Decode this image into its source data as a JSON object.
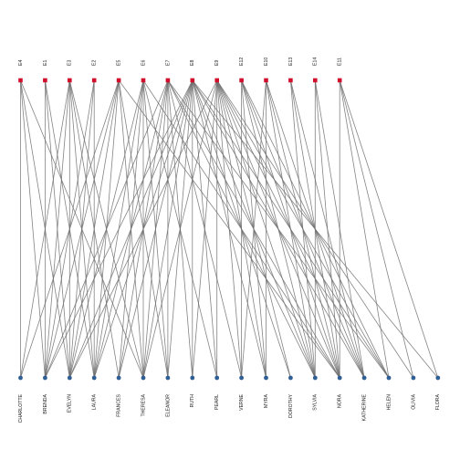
{
  "graph": {
    "top_nodes": [
      "E4",
      "E1",
      "E3",
      "E2",
      "E5",
      "E6",
      "E7",
      "E8",
      "E9",
      "E12",
      "E10",
      "E13",
      "E14",
      "E11"
    ],
    "bottom_nodes": [
      "CHARLOTTE",
      "BRENDA",
      "EVELYN",
      "LAURA",
      "FRANCES",
      "THERESA",
      "ELEANOR",
      "RUTH",
      "PEARL",
      "VERNE",
      "MYRA",
      "DOROTHY",
      "SYLVIA",
      "NORA",
      "KATHERINE",
      "HELEN",
      "OLIVIA",
      "FLORA"
    ],
    "colors": {
      "top": "#d0102c",
      "bottom": "#2f5f95",
      "edge": "#6f6f6f"
    },
    "edges": [
      [
        "E4",
        "CHARLOTTE"
      ],
      [
        "E4",
        "BRENDA"
      ],
      [
        "E4",
        "EVELYN"
      ],
      [
        "E4",
        "THERESA"
      ],
      [
        "E1",
        "BRENDA"
      ],
      [
        "E1",
        "EVELYN"
      ],
      [
        "E1",
        "LAURA"
      ],
      [
        "E3",
        "CHARLOTTE"
      ],
      [
        "E3",
        "BRENDA"
      ],
      [
        "E3",
        "EVELYN"
      ],
      [
        "E3",
        "LAURA"
      ],
      [
        "E3",
        "FRANCES"
      ],
      [
        "E3",
        "THERESA"
      ],
      [
        "E2",
        "BRENDA"
      ],
      [
        "E2",
        "EVELYN"
      ],
      [
        "E2",
        "LAURA"
      ],
      [
        "E5",
        "CHARLOTTE"
      ],
      [
        "E5",
        "BRENDA"
      ],
      [
        "E5",
        "EVELYN"
      ],
      [
        "E5",
        "LAURA"
      ],
      [
        "E5",
        "THERESA"
      ],
      [
        "E5",
        "ELEANOR"
      ],
      [
        "E5",
        "NORA"
      ],
      [
        "E6",
        "EVELYN"
      ],
      [
        "E6",
        "LAURA"
      ],
      [
        "E6",
        "FRANCES"
      ],
      [
        "E6",
        "THERESA"
      ],
      [
        "E6",
        "ELEANOR"
      ],
      [
        "E6",
        "PEARL"
      ],
      [
        "E6",
        "NORA"
      ],
      [
        "E7",
        "BRENDA"
      ],
      [
        "E7",
        "LAURA"
      ],
      [
        "E7",
        "FRANCES"
      ],
      [
        "E7",
        "THERESA"
      ],
      [
        "E7",
        "ELEANOR"
      ],
      [
        "E7",
        "RUTH"
      ],
      [
        "E7",
        "VERNE"
      ],
      [
        "E7",
        "SYLVIA"
      ],
      [
        "E7",
        "NORA"
      ],
      [
        "E7",
        "HELEN"
      ],
      [
        "E8",
        "BRENDA"
      ],
      [
        "E8",
        "EVELYN"
      ],
      [
        "E8",
        "LAURA"
      ],
      [
        "E8",
        "FRANCES"
      ],
      [
        "E8",
        "THERESA"
      ],
      [
        "E8",
        "ELEANOR"
      ],
      [
        "E8",
        "RUTH"
      ],
      [
        "E8",
        "PEARL"
      ],
      [
        "E8",
        "MYRA"
      ],
      [
        "E8",
        "DOROTHY"
      ],
      [
        "E8",
        "SYLVIA"
      ],
      [
        "E8",
        "KATHERINE"
      ],
      [
        "E8",
        "HELEN"
      ],
      [
        "E8",
        "FLORA"
      ],
      [
        "E9",
        "EVELYN"
      ],
      [
        "E9",
        "THERESA"
      ],
      [
        "E9",
        "RUTH"
      ],
      [
        "E9",
        "PEARL"
      ],
      [
        "E9",
        "VERNE"
      ],
      [
        "E9",
        "MYRA"
      ],
      [
        "E9",
        "DOROTHY"
      ],
      [
        "E9",
        "SYLVIA"
      ],
      [
        "E9",
        "NORA"
      ],
      [
        "E9",
        "KATHERINE"
      ],
      [
        "E9",
        "HELEN"
      ],
      [
        "E9",
        "OLIVIA"
      ],
      [
        "E12",
        "VERNE"
      ],
      [
        "E12",
        "MYRA"
      ],
      [
        "E12",
        "SYLVIA"
      ],
      [
        "E12",
        "NORA"
      ],
      [
        "E12",
        "KATHERINE"
      ],
      [
        "E12",
        "HELEN"
      ],
      [
        "E10",
        "VERNE"
      ],
      [
        "E10",
        "MYRA"
      ],
      [
        "E10",
        "SYLVIA"
      ],
      [
        "E10",
        "NORA"
      ],
      [
        "E10",
        "KATHERINE"
      ],
      [
        "E13",
        "SYLVIA"
      ],
      [
        "E13",
        "NORA"
      ],
      [
        "E13",
        "KATHERINE"
      ],
      [
        "E14",
        "SYLVIA"
      ],
      [
        "E14",
        "NORA"
      ],
      [
        "E14",
        "KATHERINE"
      ],
      [
        "E11",
        "NORA"
      ],
      [
        "E11",
        "HELEN"
      ],
      [
        "E11",
        "OLIVIA"
      ],
      [
        "E11",
        "FLORA"
      ]
    ]
  }
}
